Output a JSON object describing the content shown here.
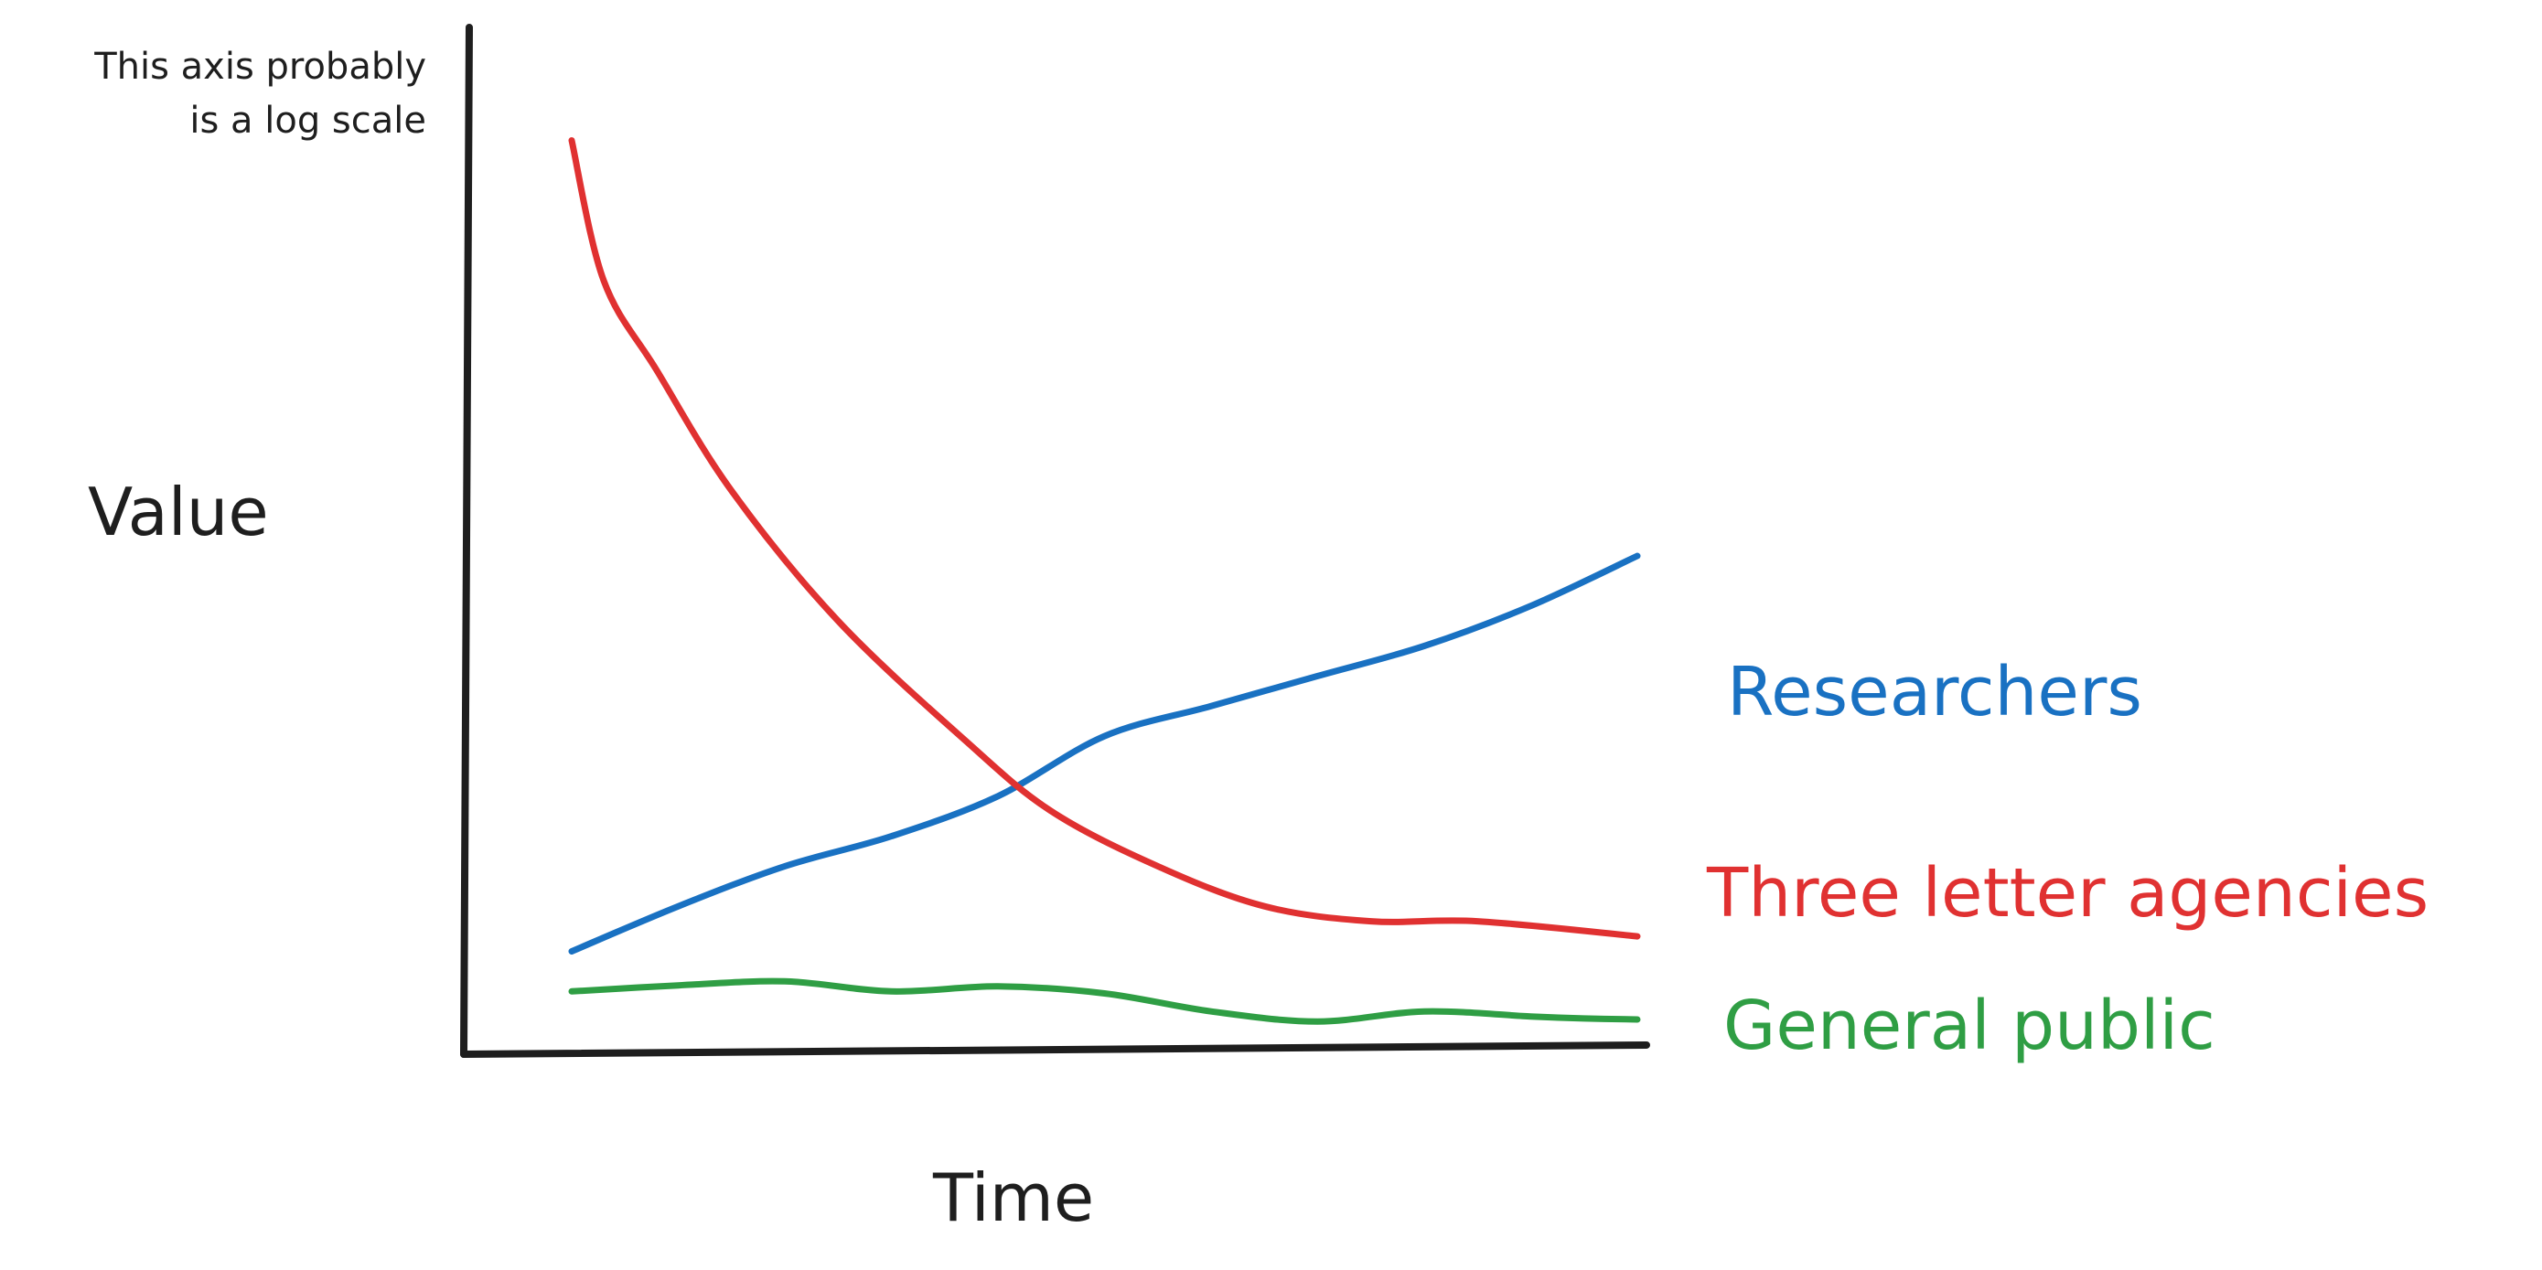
{
  "chart_data": {
    "type": "line",
    "title": "",
    "xlabel": "Time",
    "ylabel": "Value",
    "annotation": [
      "This axis probably",
      "is a log scale"
    ],
    "xlim": [
      0,
      10
    ],
    "ylim": [
      0,
      10
    ],
    "log_scale_y": true,
    "grid": false,
    "legend": "right-of-line-ends",
    "series": [
      {
        "name": "Researchers",
        "color": "#1971c2",
        "x": [
          0,
          1,
          2,
          3,
          4,
          5,
          6,
          7,
          8,
          9,
          10
        ],
        "y": [
          1.0,
          1.45,
          1.85,
          2.15,
          2.55,
          3.15,
          3.45,
          3.75,
          4.05,
          4.45,
          4.95
        ]
      },
      {
        "name": "Three letter agencies",
        "color": "#e03131",
        "x": [
          0,
          0.3,
          0.8,
          1.5,
          2.5,
          3.7,
          4.5,
          5.5,
          6.5,
          7.5,
          8.5,
          10
        ],
        "y": [
          9.1,
          7.7,
          6.8,
          5.6,
          4.3,
          3.1,
          2.4,
          1.85,
          1.45,
          1.3,
          1.3,
          1.15
        ]
      },
      {
        "name": "General public",
        "color": "#2f9e44",
        "x": [
          0,
          1,
          2,
          3,
          4,
          5,
          6,
          7,
          8,
          9,
          9.5,
          10
        ],
        "y": [
          0.6,
          0.66,
          0.7,
          0.6,
          0.65,
          0.58,
          0.4,
          0.3,
          0.4,
          0.35,
          0.33,
          0.32
        ]
      }
    ]
  }
}
